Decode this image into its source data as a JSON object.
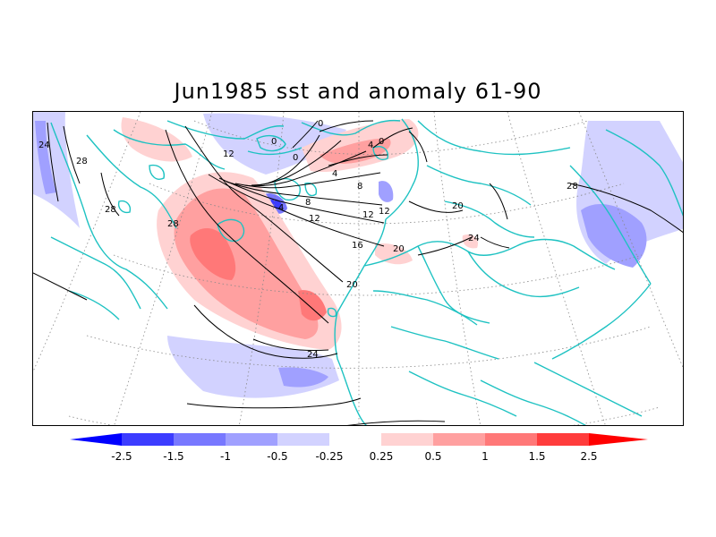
{
  "title": "Jun1985 sst and anomaly 61-90",
  "colors": {
    "coast": "#1ec2c2",
    "contour": "#000000",
    "grid": "#888888",
    "neg_strong": "#0000ff",
    "neg_25": "#3c3cff",
    "neg_15": "#7878ff",
    "neg_10": "#a0a0ff",
    "neg_05": "#d2d2ff",
    "neutral": "#ffffff",
    "pos_05": "#ffd2d2",
    "pos_10": "#ffa0a0",
    "pos_15": "#ff7878",
    "pos_25": "#ff3c3c",
    "pos_strong": "#ff0000"
  },
  "colorbar": {
    "labels": [
      "-2.5",
      "-1.5",
      "-1",
      "-0.5",
      "-0.25",
      "0.25",
      "0.5",
      "1",
      "1.5",
      "2.5"
    ]
  },
  "contour_labels": {
    "c24_west": "24",
    "c28_a": "28",
    "c28_b": "28",
    "c28_c": "28",
    "c12_a": "12",
    "c0_a": "0",
    "c0_b": "0",
    "c0_c": "0",
    "c4_a": "4",
    "c0_d": "0",
    "c4_b": "4",
    "c8_a": "8",
    "c4_c": "4",
    "c8_b": "8",
    "c12_b": "12",
    "c12_c": "12",
    "c12_d": "12",
    "c16": "16",
    "c20_a": "20",
    "c20_b": "20",
    "c20_c": "20",
    "c24_b": "24",
    "c24_c": "24",
    "c28_d": "28"
  }
}
